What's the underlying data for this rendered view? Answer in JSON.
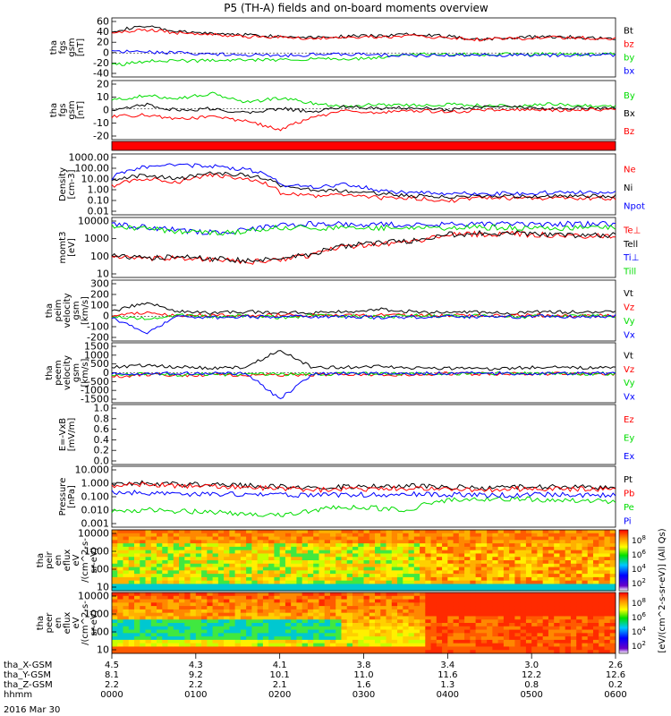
{
  "title": "P5 (TH-A) fields and on-board moments overview",
  "date_label": "2016 Mar 30",
  "colors": {
    "black": "#000000",
    "red": "#ff0000",
    "green": "#00dd00",
    "blue": "#0000ff"
  },
  "chart_data": [
    {
      "id": "fgs-gsm-1",
      "type": "line",
      "ylabel": [
        "tha",
        "fgs",
        "gsm",
        "[nT]"
      ],
      "yticks": [
        "60",
        "40",
        "20",
        "0",
        "-20",
        "-40"
      ],
      "ylim": [
        -40,
        60
      ],
      "ygrid_zero": true,
      "series": [
        {
          "name": "Bt",
          "color": "#000000",
          "values": [
            40,
            48,
            38,
            35,
            33,
            30,
            29,
            30,
            31,
            35,
            30,
            25,
            28,
            30,
            28,
            26
          ]
        },
        {
          "name": "bz",
          "color": "#ff0000",
          "values": [
            35,
            42,
            36,
            33,
            30,
            28,
            27,
            28,
            29,
            30,
            28,
            24,
            26,
            28,
            27,
            25
          ]
        },
        {
          "name": "by",
          "color": "#00dd00",
          "values": [
            -22,
            -15,
            -14,
            -14,
            -13,
            -12,
            -10,
            -12,
            -8,
            -3,
            -2,
            -3,
            -2,
            -2,
            -2,
            -2
          ]
        },
        {
          "name": "bx",
          "color": "#0000ff",
          "values": [
            3,
            2,
            0,
            -2,
            -3,
            -5,
            -3,
            -2,
            -4,
            -5,
            -4,
            -4,
            -4,
            -4,
            -4,
            -4
          ]
        }
      ]
    },
    {
      "id": "fgs-gsm-2",
      "type": "line",
      "ylabel": [
        "tha",
        "fgs",
        "gsm",
        "[nT]"
      ],
      "yticks": [
        "20",
        "10",
        "0",
        "-10",
        "-20"
      ],
      "ylim": [
        -28,
        25
      ],
      "ygrid_zero": true,
      "series": [
        {
          "name": "By",
          "color": "#00dd00",
          "values": [
            8,
            12,
            10,
            14,
            6,
            10,
            5,
            2,
            4,
            3,
            4,
            3,
            2,
            4,
            3,
            2
          ]
        },
        {
          "name": "Bx",
          "color": "#000000",
          "values": [
            -3,
            4,
            -2,
            0,
            -4,
            0,
            -3,
            2,
            0,
            1,
            -1,
            1,
            2,
            0,
            1,
            0
          ]
        },
        {
          "name": "Bz",
          "color": "#ff0000",
          "values": [
            -8,
            -6,
            -10,
            -8,
            -12,
            -20,
            -8,
            -2,
            -4,
            -2,
            -3,
            -2,
            -1,
            -2,
            -1,
            -1
          ]
        }
      ]
    },
    {
      "id": "density",
      "type": "line",
      "scale": "log",
      "ylabel": [
        "Density",
        "[cm-3]"
      ],
      "yticks": [
        "1000.00",
        "100.00",
        "10.00",
        "1.00",
        "0.10",
        "0.01"
      ],
      "ylim": [
        0.01,
        1000
      ],
      "series": [
        {
          "name": "Ne",
          "color": "#ff0000",
          "values": [
            2,
            10,
            5,
            20,
            8,
            0.5,
            0.3,
            0.4,
            0.2,
            0.2,
            0.1,
            0.2,
            0.2,
            0.2,
            0.2,
            0.2
          ]
        },
        {
          "name": "Ni",
          "color": "#000000",
          "values": [
            5,
            20,
            8,
            30,
            20,
            2,
            1,
            0.8,
            0.5,
            0.3,
            0.25,
            0.3,
            0.3,
            0.3,
            0.3,
            0.3
          ]
        },
        {
          "name": "Npot",
          "color": "#0000ff",
          "values": [
            10,
            100,
            150,
            120,
            60,
            3,
            2,
            3,
            0.8,
            0.6,
            0.5,
            0.5,
            0.5,
            0.6,
            0.6,
            0.6
          ]
        }
      ]
    },
    {
      "id": "temperature",
      "type": "line",
      "scale": "log",
      "ylabel": [
        "momt3",
        "[eV]"
      ],
      "yticks": [
        "10000",
        "1000",
        "100",
        "10"
      ],
      "ylim": [
        3,
        10000
      ],
      "series": [
        {
          "name": "Te⊥",
          "color": "#ff0000",
          "values": [
            50,
            30,
            40,
            30,
            20,
            30,
            60,
            200,
            300,
            400,
            1000,
            1200,
            1200,
            1000,
            900,
            900
          ]
        },
        {
          "name": "Tell",
          "color": "#000000",
          "values": [
            60,
            35,
            45,
            35,
            25,
            35,
            70,
            220,
            320,
            450,
            1100,
            1300,
            1300,
            1100,
            1000,
            1000
          ]
        },
        {
          "name": "Ti⊥",
          "color": "#0000ff",
          "values": [
            5000,
            3000,
            2000,
            1500,
            2000,
            4000,
            5000,
            5000,
            4500,
            4500,
            5000,
            5000,
            5000,
            5000,
            5000,
            5000
          ]
        },
        {
          "name": "Till",
          "color": "#00dd00",
          "values": [
            4000,
            2500,
            1800,
            1300,
            1800,
            3000,
            3000,
            3000,
            3000,
            3000,
            3000,
            3000,
            3000,
            3000,
            3000,
            3000
          ]
        }
      ]
    },
    {
      "id": "peim-velocity",
      "type": "line",
      "ylabel": [
        "tha",
        "peim",
        "velocity",
        "gsm",
        "[km/s]"
      ],
      "yticks": [
        "300",
        "200",
        "100",
        "0",
        "-100",
        "-200"
      ],
      "ylim": [
        -200,
        300
      ],
      "ygrid_zero": true,
      "series": [
        {
          "name": "Vt",
          "color": "#000000",
          "values": [
            40,
            120,
            40,
            30,
            40,
            35,
            30,
            40,
            60,
            40,
            30,
            35,
            30,
            40,
            35,
            40
          ]
        },
        {
          "name": "Vz",
          "color": "#ff0000",
          "values": [
            5,
            30,
            5,
            10,
            5,
            10,
            8,
            5,
            10,
            5,
            8,
            5,
            10,
            5,
            5,
            5
          ]
        },
        {
          "name": "Vy",
          "color": "#00dd00",
          "values": [
            0,
            -20,
            10,
            -5,
            5,
            -10,
            5,
            0,
            -5,
            5,
            0,
            5,
            -5,
            0,
            5,
            0
          ]
        },
        {
          "name": "Vx",
          "color": "#0000ff",
          "values": [
            -5,
            -150,
            0,
            -10,
            -5,
            -5,
            0,
            -5,
            -10,
            -5,
            0,
            -5,
            -5,
            0,
            -5,
            0
          ]
        }
      ]
    },
    {
      "id": "peem-velocity",
      "type": "line",
      "ylabel": [
        "tha",
        "peem",
        "velocity",
        "gsm",
        "[km/s]"
      ],
      "yticks": [
        "1500",
        "1000",
        "500",
        "0",
        "-500",
        "-1000",
        "-1500"
      ],
      "ylim": [
        -1500,
        1500
      ],
      "ygrid_zero": true,
      "series": [
        {
          "name": "Vt",
          "color": "#000000",
          "values": [
            300,
            400,
            300,
            250,
            300,
            1200,
            250,
            300,
            350,
            250,
            250,
            200,
            250,
            300,
            250,
            250
          ]
        },
        {
          "name": "Vz",
          "color": "#ff0000",
          "values": [
            -200,
            -100,
            -150,
            -100,
            -150,
            -100,
            -100,
            -80,
            -100,
            -80,
            -50,
            -50,
            -60,
            -50,
            -50,
            -50
          ]
        },
        {
          "name": "Vy",
          "color": "#00dd00",
          "values": [
            -100,
            -80,
            -100,
            -80,
            -100,
            -60,
            -80,
            -50,
            -60,
            -50,
            -40,
            -40,
            -40,
            -40,
            -40,
            -40
          ]
        },
        {
          "name": "Vx",
          "color": "#0000ff",
          "values": [
            -50,
            -50,
            -30,
            -40,
            -30,
            -1400,
            -30,
            -30,
            -40,
            -30,
            -30,
            -30,
            -30,
            -30,
            -30,
            -30
          ]
        }
      ]
    },
    {
      "id": "efield",
      "type": "line",
      "ylabel": [
        "E=-VxB",
        "[mV/m]"
      ],
      "yticks": [
        "1.0",
        "0.8",
        "0.6",
        "0.4",
        "0.2",
        "0.0"
      ],
      "ylim": [
        0,
        1
      ],
      "series": [
        {
          "name": "Ez",
          "color": "#ff0000",
          "values": []
        },
        {
          "name": "Ey",
          "color": "#00dd00",
          "values": []
        },
        {
          "name": "Ex",
          "color": "#0000ff",
          "values": []
        }
      ]
    },
    {
      "id": "pressure",
      "type": "line",
      "scale": "log",
      "ylabel": [
        "Pressure",
        "[nPa]"
      ],
      "yticks": [
        "10.000",
        "1.000",
        "0.100",
        "0.010",
        "0.001"
      ],
      "ylim": [
        0.001,
        10
      ],
      "series": [
        {
          "name": "Pt",
          "color": "#000000",
          "values": [
            0.8,
            0.9,
            0.7,
            0.7,
            0.6,
            0.5,
            0.5,
            0.5,
            0.5,
            0.6,
            0.5,
            0.4,
            0.5,
            0.5,
            0.5,
            0.4
          ]
        },
        {
          "name": "Pb",
          "color": "#ff0000",
          "values": [
            0.6,
            0.7,
            0.6,
            0.5,
            0.45,
            0.4,
            0.3,
            0.35,
            0.35,
            0.4,
            0.35,
            0.3,
            0.35,
            0.35,
            0.35,
            0.3
          ]
        },
        {
          "name": "Pe",
          "color": "#00dd00",
          "values": [
            0.01,
            0.012,
            0.01,
            0.008,
            0.006,
            0.005,
            0.01,
            0.02,
            0.015,
            0.012,
            0.06,
            0.07,
            0.07,
            0.06,
            0.05,
            0.05
          ]
        },
        {
          "name": "Pi",
          "color": "#0000ff",
          "values": [
            0.2,
            0.18,
            0.15,
            0.15,
            0.15,
            0.14,
            0.13,
            0.14,
            0.14,
            0.15,
            0.14,
            0.13,
            0.13,
            0.14,
            0.13,
            0.13
          ]
        }
      ]
    },
    {
      "id": "peir-en-eflux",
      "type": "heatmap",
      "ylabel": [
        "tha",
        "peir",
        "en",
        "eflux",
        "eV",
        "/(cm^2-s-",
        "sr-eV)"
      ],
      "yticks": [
        "10000",
        "1000",
        "100",
        "10"
      ]
    },
    {
      "id": "peer-en-eflux",
      "type": "heatmap",
      "ylabel": [
        "tha",
        "peer",
        "en",
        "eflux",
        "eV",
        "/(cm^2-s-",
        "sr-eV)"
      ],
      "yticks": [
        "10000",
        "1000",
        "100",
        "10"
      ]
    }
  ],
  "colorbar": {
    "ticks": [
      "10^8",
      "10^6",
      "10^4",
      "10^2"
    ],
    "label": "[eV/(cm^2-s-sr-eV)] (All Qs)"
  },
  "xaxis": {
    "row_labels": [
      "tha_X-GSM",
      "tha_Y-GSM",
      "tha_Z-GSM",
      "hhmm"
    ],
    "columns": [
      [
        "4.5",
        "8.1",
        "2.2",
        "0000"
      ],
      [
        "4.3",
        "9.2",
        "2.2",
        "0100"
      ],
      [
        "4.1",
        "10.1",
        "2.1",
        "0200"
      ],
      [
        "3.8",
        "11.0",
        "1.6",
        "0300"
      ],
      [
        "3.4",
        "11.6",
        "1.3",
        "0400"
      ],
      [
        "3.0",
        "12.2",
        "0.8",
        "0500"
      ],
      [
        "2.6",
        "12.6",
        "0.2",
        "0600"
      ]
    ]
  }
}
